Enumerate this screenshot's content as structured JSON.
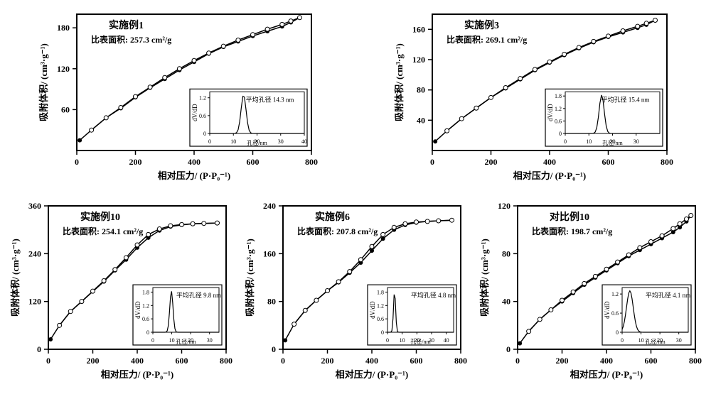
{
  "global": {
    "xlabel": "相对压力/ (P·P₀⁻¹)",
    "ylabel": "吸附体积/ (cm³·g⁻¹)",
    "inset_xlabel": "孔径/nm",
    "inset_ylabel": "dV/dD",
    "font_family": "SimSun",
    "axis_color": "#000000",
    "bg_color": "#ffffff",
    "tick_fontsize": 12,
    "label_fontsize": 13,
    "title_fontsize": 14,
    "line_color": "#000000",
    "marker_fill_ads": "#000000",
    "marker_fill_des": "#ffffff",
    "marker_stroke": "#000000",
    "marker_size": 3,
    "line_width": 1.5
  },
  "panels": [
    {
      "id": "p1",
      "title": "实施例1",
      "area_label": "比表面积:",
      "area_value": "257.3 cm²/g",
      "xlim": [
        0,
        800
      ],
      "ylim": [
        0,
        200
      ],
      "xtick_step": 200,
      "yticks": [
        60,
        120,
        180
      ],
      "ads": {
        "x": [
          10,
          50,
          100,
          150,
          200,
          250,
          300,
          350,
          400,
          450,
          500,
          550,
          600,
          650,
          700,
          730,
          760
        ],
        "y": [
          15,
          30,
          48,
          62,
          78,
          92,
          105,
          118,
          130,
          142,
          152,
          160,
          168,
          175,
          182,
          188,
          195
        ]
      },
      "des": {
        "x": [
          760,
          730,
          700,
          650,
          600,
          550,
          500,
          450,
          400,
          350,
          300,
          250,
          200,
          150,
          100,
          50
        ],
        "y": [
          195,
          190,
          185,
          178,
          170,
          162,
          153,
          143,
          132,
          120,
          107,
          93,
          79,
          63,
          48,
          30
        ]
      },
      "inset": {
        "xlim": [
          0,
          40
        ],
        "ylim": [
          0,
          1.4
        ],
        "xticks": [
          0,
          10,
          20,
          30,
          40
        ],
        "yticks": [
          0,
          0.6,
          1.2
        ],
        "peak_x": 14.3,
        "peak_y": 1.3,
        "width": 1.5,
        "label": "平均孔径 14.3 nm"
      }
    },
    {
      "id": "p2",
      "title": "实施例3",
      "area_label": "比表面积:",
      "area_value": "269.1 cm²/g",
      "xlim": [
        0,
        800
      ],
      "ylim": [
        0,
        180
      ],
      "xtick_step": 200,
      "yticks": [
        40,
        80,
        120,
        160
      ],
      "ads": {
        "x": [
          10,
          50,
          100,
          150,
          200,
          250,
          300,
          350,
          400,
          450,
          500,
          550,
          600,
          650,
          700,
          730,
          760
        ],
        "y": [
          12,
          26,
          42,
          56,
          70,
          82,
          94,
          106,
          116,
          126,
          135,
          143,
          150,
          156,
          162,
          166,
          172
        ]
      },
      "des": {
        "x": [
          760,
          730,
          700,
          650,
          600,
          550,
          500,
          450,
          400,
          350,
          300,
          250,
          200,
          150,
          100,
          50
        ],
        "y": [
          172,
          168,
          164,
          158,
          151,
          144,
          136,
          127,
          117,
          107,
          95,
          83,
          70,
          56,
          42,
          26
        ]
      },
      "inset": {
        "xlim": [
          0,
          40
        ],
        "ylim": [
          0,
          2.0
        ],
        "xticks": [
          0,
          10,
          20,
          30
        ],
        "yticks": [
          0,
          0.6,
          1.2,
          1.8
        ],
        "peak_x": 15.4,
        "peak_y": 1.85,
        "width": 1.5,
        "label": "平均孔径 15.4 nm"
      }
    },
    {
      "id": "p3",
      "title": "实施例10",
      "area_label": "比表面积:",
      "area_value": "254.1 cm²/g",
      "xlim": [
        0,
        800
      ],
      "ylim": [
        0,
        360
      ],
      "xtick_step": 200,
      "yticks": [
        0,
        120,
        240,
        360
      ],
      "ads": {
        "x": [
          10,
          50,
          100,
          150,
          200,
          250,
          300,
          350,
          400,
          450,
          500,
          550,
          600,
          650,
          700,
          760
        ],
        "y": [
          25,
          60,
          95,
          120,
          145,
          170,
          198,
          225,
          255,
          280,
          298,
          308,
          312,
          315,
          316,
          317
        ]
      },
      "des": {
        "x": [
          760,
          700,
          650,
          600,
          550,
          500,
          450,
          400,
          350,
          300,
          250,
          200,
          150,
          100,
          50
        ],
        "y": [
          317,
          316,
          315,
          313,
          310,
          302,
          288,
          262,
          230,
          200,
          172,
          146,
          120,
          95,
          60
        ]
      },
      "inset": {
        "xlim": [
          0,
          35
        ],
        "ylim": [
          0,
          2.0
        ],
        "xticks": [
          0,
          10,
          20,
          30
        ],
        "yticks": [
          0,
          0.6,
          1.2,
          1.8
        ],
        "peak_x": 9.8,
        "peak_y": 1.85,
        "width": 1.2,
        "label": "平均孔径 9.8 nm"
      }
    },
    {
      "id": "p4",
      "title": "实施例6",
      "area_label": "比表面积:",
      "area_value": "207.8 cm²/g",
      "xlim": [
        0,
        800
      ],
      "ylim": [
        0,
        240
      ],
      "xtick_step": 200,
      "yticks": [
        0,
        80,
        160,
        240
      ],
      "ads": {
        "x": [
          10,
          50,
          100,
          150,
          200,
          250,
          300,
          350,
          400,
          450,
          500,
          550,
          600,
          650,
          700,
          760
        ],
        "y": [
          15,
          42,
          65,
          82,
          98,
          112,
          128,
          145,
          165,
          185,
          200,
          208,
          212,
          214,
          215,
          216
        ]
      },
      "des": {
        "x": [
          760,
          700,
          650,
          600,
          550,
          500,
          450,
          400,
          350,
          300,
          250,
          200,
          150,
          100,
          50
        ],
        "y": [
          216,
          215,
          214,
          213,
          210,
          204,
          192,
          172,
          150,
          130,
          113,
          98,
          82,
          65,
          42
        ]
      },
      "inset": {
        "xlim": [
          0,
          45
        ],
        "ylim": [
          0,
          2.0
        ],
        "xticks": [
          0,
          10,
          20,
          30,
          40
        ],
        "yticks": [
          0,
          0.6,
          1.2,
          1.8
        ],
        "peak_x": 4.8,
        "peak_y": 1.85,
        "width": 1.0,
        "label": "平均孔径 4.8 nm"
      }
    },
    {
      "id": "p5",
      "title": "对比例10",
      "area_label": "比表面积:",
      "area_value": "198.7 cm²/g",
      "xlim": [
        0,
        800
      ],
      "ylim": [
        0,
        120
      ],
      "xtick_step": 200,
      "yticks": [
        0,
        40,
        80,
        120
      ],
      "ads": {
        "x": [
          10,
          50,
          100,
          150,
          200,
          250,
          300,
          350,
          400,
          450,
          500,
          550,
          600,
          650,
          700,
          730,
          760,
          780
        ],
        "y": [
          5,
          15,
          25,
          33,
          40,
          47,
          54,
          60,
          66,
          72,
          78,
          83,
          88,
          93,
          98,
          102,
          107,
          112
        ]
      },
      "des": {
        "x": [
          780,
          760,
          730,
          700,
          650,
          600,
          550,
          500,
          450,
          400,
          350,
          300,
          250,
          200,
          150,
          100,
          50
        ],
        "y": [
          112,
          109,
          105,
          101,
          95,
          90,
          85,
          79,
          73,
          67,
          61,
          55,
          48,
          41,
          33,
          25,
          15
        ]
      },
      "inset": {
        "xlim": [
          0,
          35
        ],
        "ylim": [
          0,
          1.4
        ],
        "xticks": [
          0,
          10,
          20,
          30
        ],
        "yticks": [
          0,
          0.6,
          1.2
        ],
        "peak_x": 4.1,
        "peak_y": 1.3,
        "width": 2.5,
        "label": "平均孔径 4.1 nm"
      }
    }
  ]
}
